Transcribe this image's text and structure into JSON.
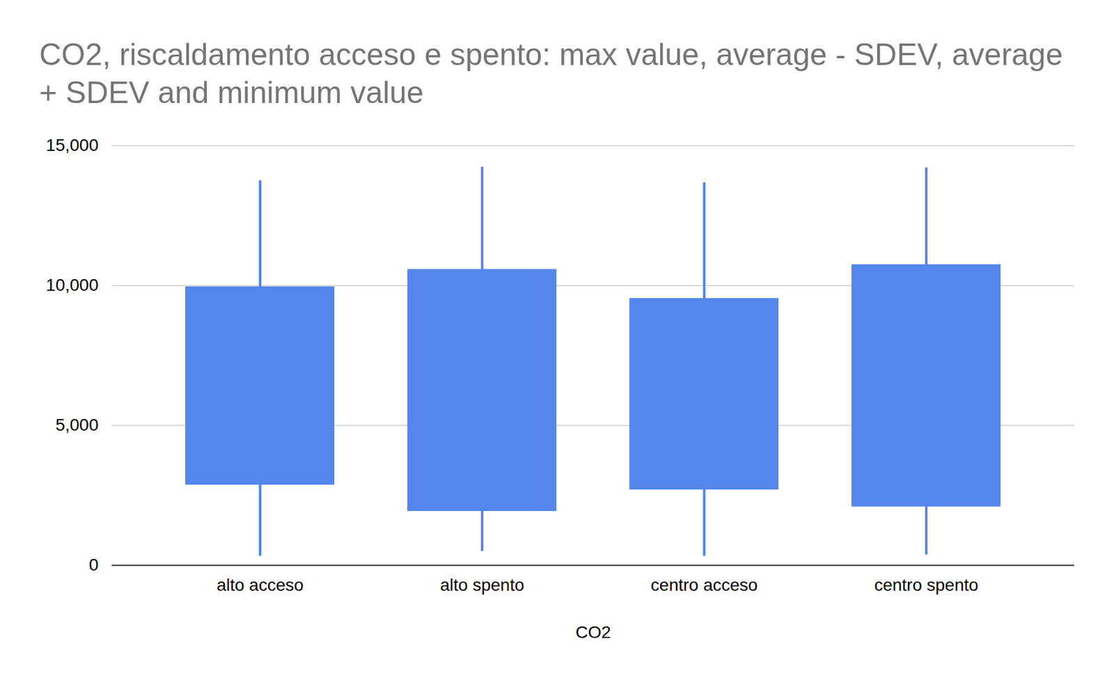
{
  "chart_data": {
    "type": "candlestick",
    "title": "CO2, riscaldamento acceso e spento: max value, average - SDEV, average + SDEV and minimum value",
    "x_label": "CO2",
    "categories": [
      "alto acceso",
      "alto spento",
      "centro acceso",
      "centro spento"
    ],
    "min": [
      330,
      500,
      330,
      380
    ],
    "average_minus_sdev": [
      2870,
      1930,
      2700,
      2090
    ],
    "average_plus_sdev": [
      9960,
      10580,
      9540,
      10750
    ],
    "max": [
      13750,
      14240,
      13680,
      14210
    ],
    "color": "#5486ec",
    "ylim": [
      0,
      15000
    ],
    "yticks": [
      0,
      5000,
      10000,
      15000
    ],
    "grid": true
  }
}
